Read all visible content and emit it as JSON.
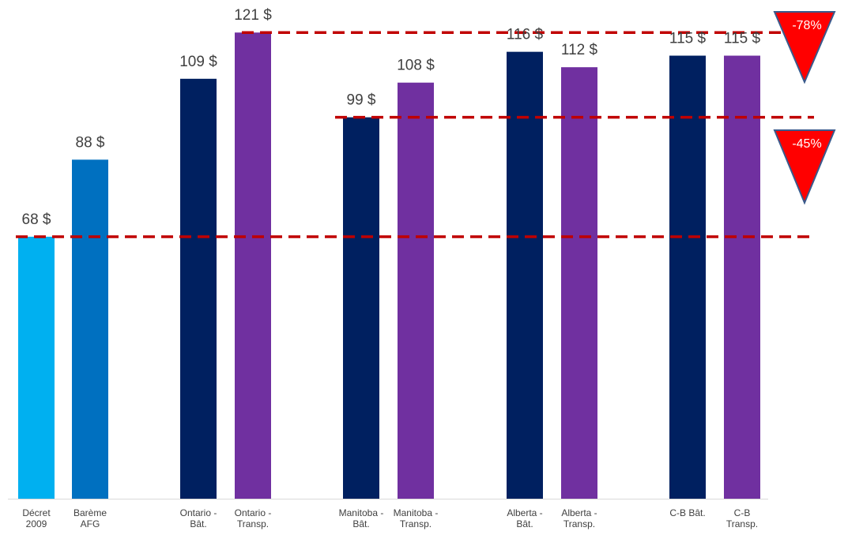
{
  "chart_data": {
    "type": "bar",
    "categories": [
      [
        "Décret",
        "2009"
      ],
      [
        "Barème",
        "AFG"
      ],
      [
        "Ontario -",
        "Bât."
      ],
      [
        "Ontario -",
        "Transp."
      ],
      [
        "Manitoba -",
        "Bât."
      ],
      [
        "Manitoba -",
        "Transp."
      ],
      [
        "Alberta -",
        "Bât."
      ],
      [
        "Alberta -",
        "Transp."
      ],
      [
        "C-B Bât."
      ],
      [
        "C-B",
        "Transp."
      ]
    ],
    "values": [
      68,
      88,
      109,
      121,
      99,
      108,
      116,
      112,
      115,
      115
    ],
    "value_labels": [
      "68 $",
      "88 $",
      "109 $",
      "121 $",
      "99 $",
      "108 $",
      "116 $",
      "112 $",
      "115 $",
      "115 $"
    ],
    "bar_colors": [
      "#00b0f0",
      "#0070c0",
      "#002060",
      "#7030a0",
      "#002060",
      "#7030a0",
      "#002060",
      "#7030a0",
      "#002060",
      "#7030a0"
    ],
    "ylim": [
      0,
      130
    ],
    "grid": false,
    "reference_lines": [
      {
        "value": 121,
        "color": "#c00000"
      },
      {
        "value": 99,
        "color": "#c00000"
      },
      {
        "value": 68,
        "color": "#c00000"
      }
    ],
    "annotations": [
      {
        "text": "-78%",
        "color": "#ff0000"
      },
      {
        "text": "-45%",
        "color": "#ff0000"
      }
    ]
  }
}
